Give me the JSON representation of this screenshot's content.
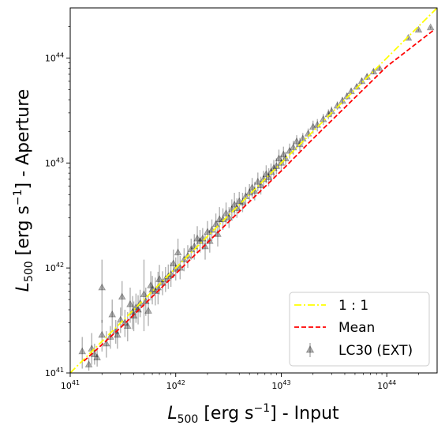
{
  "chart_data": {
    "type": "scatter",
    "x_scale": "log",
    "y_scale": "log",
    "xlim": [
      1e+41,
      3e+44
    ],
    "ylim": [
      1e+41,
      3e+44
    ],
    "x_ticks": [
      {
        "value": 1e+41,
        "base": "10",
        "exp": "41"
      },
      {
        "value": 1e+42,
        "base": "10",
        "exp": "42"
      },
      {
        "value": 1e+43,
        "base": "10",
        "exp": "43"
      },
      {
        "value": 1e+44,
        "base": "10",
        "exp": "44"
      }
    ],
    "y_ticks": [
      {
        "value": 1e+41,
        "base": "10",
        "exp": "41"
      },
      {
        "value": 1e+42,
        "base": "10",
        "exp": "42"
      },
      {
        "value": 1e+43,
        "base": "10",
        "exp": "43"
      },
      {
        "value": 1e+44,
        "base": "10",
        "exp": "44"
      }
    ],
    "xlabel": {
      "symbol": "L",
      "sub": "500",
      "pre": " [erg s",
      "sup": "−1",
      "post": "] - Input"
    },
    "ylabel": {
      "symbol": "L",
      "sub": "500",
      "pre": " [erg s",
      "sup": "−1",
      "post": "] - Aperture"
    },
    "legend_position": "lower-right",
    "series": [
      {
        "name": "1 : 1",
        "kind": "line",
        "style": "dashdot",
        "color": "#ffff00",
        "x": [
          1e+41,
          3e+44
        ],
        "y": [
          1e+41,
          3e+44
        ]
      },
      {
        "name": "Mean",
        "kind": "line",
        "style": "dashed",
        "color": "#ff0000",
        "x": [
          1.35e+41,
          3e+41,
          1e+42,
          3e+42,
          1e+43,
          2e+43,
          5e+43,
          1e+44,
          2.8e+44
        ],
        "y": [
          1.3e+41,
          2.7e+41,
          8.8e+41,
          2.6e+42,
          8.4e+42,
          1.7e+43,
          4.2e+43,
          8.3e+43,
          1.85e+44
        ]
      },
      {
        "name": "LC30 (EXT)",
        "kind": "scatter",
        "marker": "triangle",
        "color": "#000000",
        "alpha": 0.3,
        "x": [
          1.3e+41,
          1.5e+41,
          1.6e+41,
          1.7e+41,
          1.8e+41,
          2e+41,
          2e+41,
          2.2e+41,
          2.4e+41,
          2.5e+41,
          2.7e+41,
          2.8e+41,
          3e+41,
          3.1e+41,
          3.3e+41,
          3.5e+41,
          3.7e+41,
          3.9e+41,
          4e+41,
          4.2e+41,
          4.4e+41,
          4.6e+41,
          5e+41,
          5.2e+41,
          5.5e+41,
          5.8e+41,
          6e+41,
          6.4e+41,
          6.8e+41,
          7e+41,
          7.5e+41,
          8e+41,
          8.5e+41,
          9e+41,
          9.5e+41,
          1e+42,
          1.05e+42,
          1.1e+42,
          1.2e+42,
          1.3e+42,
          1.4e+42,
          1.5e+42,
          1.6e+42,
          1.7e+42,
          1.8e+42,
          1.9e+42,
          2e+42,
          2.1e+42,
          2.2e+42,
          2.4e+42,
          2.5e+42,
          2.6e+42,
          2.8e+42,
          3e+42,
          3.2e+42,
          3.4e+42,
          3.6e+42,
          3.8e+42,
          4e+42,
          4.3e+42,
          4.6e+42,
          5e+42,
          5.3e+42,
          5.6e+42,
          6e+42,
          6.4e+42,
          6.8e+42,
          7.2e+42,
          7.6e+42,
          8e+42,
          8.5e+42,
          9e+42,
          9.5e+42,
          1e+43,
          1.05e+43,
          1.1e+43,
          1.2e+43,
          1.3e+43,
          1.4e+43,
          1.5e+43,
          1.6e+43,
          1.8e+43,
          2e+43,
          2.2e+43,
          2.5e+43,
          2.8e+43,
          3e+43,
          3.4e+43,
          3.8e+43,
          4.2e+43,
          4.6e+43,
          5.2e+43,
          5.8e+43,
          6.5e+43,
          7.5e+43,
          8.5e+43,
          1.6e+44,
          2e+44,
          2.6e+44
        ],
        "y": [
          1.6e+41,
          1.2e+41,
          1.7e+41,
          1.5e+41,
          1.4e+41,
          2.3e+41,
          6.5e+41,
          1.9e+41,
          2.2e+41,
          3.6e+41,
          2.5e+41,
          2.3e+41,
          3.2e+41,
          5.3e+41,
          3e+41,
          2.8e+41,
          4.5e+41,
          3.8e+41,
          3.5e+41,
          4.2e+41,
          4e+41,
          4.6e+41,
          5.6e+41,
          4.8e+41,
          3.9e+41,
          6.8e+41,
          6.2e+41,
          6e+41,
          6.5e+41,
          7.8e+41,
          7.2e+41,
          7.8e+41,
          8.3e+41,
          8.7e+41,
          1.1e+42,
          9.8e+41,
          1.4e+42,
          1e+42,
          1.2e+42,
          1.3e+42,
          1.5e+42,
          1.6e+42,
          1.9e+42,
          1.8e+42,
          1.9e+42,
          1.6e+42,
          2.2e+42,
          1.8e+42,
          2.3e+42,
          2.6e+42,
          2.1e+42,
          2.9e+42,
          2.9e+42,
          3.3e+42,
          3e+42,
          3.6e+42,
          4e+42,
          3.7e+42,
          4.3e+42,
          4.2e+42,
          4.8e+42,
          5.2e+42,
          5.8e+42,
          5.4e+42,
          6.6e+42,
          6.1e+42,
          7e+42,
          7.8e+42,
          7.3e+42,
          8.2e+42,
          8.9e+42,
          9.3e+42,
          1.1e+43,
          1e+43,
          1.2e+43,
          1.1e+43,
          1.3e+43,
          1.4e+43,
          1.6e+43,
          1.5e+43,
          1.7e+43,
          1.9e+43,
          2.2e+43,
          2.3e+43,
          2.6e+43,
          2.9e+43,
          3.1e+43,
          3.5e+43,
          3.9e+43,
          4.3e+43,
          4.8e+43,
          5.3e+43,
          6e+43,
          6.6e+43,
          7.4e+43,
          8e+43,
          1.55e+44,
          1.85e+44,
          1.95e+44
        ],
        "err_lo": [
          1.1e+41,
          1.05e+41,
          1.2e+41,
          1.2e+41,
          1.15e+41,
          1.6e+41,
          3e+41,
          1.4e+41,
          1.7e+41,
          2.5e+41,
          1.9e+41,
          1.7e+41,
          2.4e+41,
          3.5e+41,
          2.2e+41,
          2e+41,
          3e+41,
          2.6e+41,
          2.5e+41,
          3e+41,
          2.9e+41,
          3.4e+41,
          2.5e+41,
          3.5e+41,
          2.8e+41,
          4.9e+41,
          4.5e+41,
          4.4e+41,
          4.5e+41,
          5.6e+41,
          5.5e+41,
          5.9e+41,
          6.3e+41,
          6.6e+41,
          8e+41,
          7.6e+41,
          1e+42,
          7.8e+41,
          9.3e+41,
          1e+42,
          1.2e+42,
          1.2e+42,
          1.4e+42,
          1.4e+42,
          1.5e+42,
          1.2e+42,
          1.7e+42,
          1.4e+42,
          1.8e+42,
          2e+42,
          1.6e+42,
          2.2e+42,
          2.3e+42,
          2.6e+42,
          2.4e+42,
          2.9e+42,
          3.1e+42,
          3e+42,
          3.5e+42,
          3.4e+42,
          3.9e+42,
          4.3e+42,
          4.7e+42,
          4.4e+42,
          5.4e+42,
          5e+42,
          5.8e+42,
          6.4e+42,
          6e+42,
          6.8e+42,
          7.4e+42,
          7.8e+42,
          9e+42,
          8.5e+42,
          1e+43,
          9.5e+42,
          1.1e+43,
          1.2e+43,
          1.4e+43,
          1.3e+43,
          1.5e+43,
          1.7e+43,
          1.9e+43,
          2e+43,
          2.3e+43,
          2.6e+43,
          2.8e+43,
          3.2e+43,
          3.6e+43,
          4e+43,
          4.5e+43,
          5e+43,
          5.6e+43,
          6.2e+43,
          7e+43,
          7.6e+43,
          1.5e+44,
          1.8e+44,
          1.9e+44
        ],
        "err_hi": [
          2.2e+41,
          1.4e+41,
          2.4e+41,
          1.9e+41,
          1.7e+41,
          3.2e+41,
          1.2e+42,
          2.5e+41,
          2.8e+41,
          5e+41,
          3.2e+41,
          3e+41,
          4.2e+41,
          7.5e+41,
          4e+41,
          3.8e+41,
          6.5e+41,
          5.4e+41,
          4.8e+41,
          5.7e+41,
          5.5e+41,
          6.2e+41,
          1.2e+42,
          6.5e+41,
          5.4e+41,
          9.3e+41,
          8.4e+41,
          8.1e+41,
          9.2e+41,
          1.07e+42,
          9.3e+41,
          1.02e+42,
          1.08e+42,
          1.13e+42,
          1.5e+42,
          1.26e+42,
          1.9e+42,
          1.3e+42,
          1.54e+42,
          1.65e+42,
          1.9e+42,
          2.1e+42,
          2.5e+42,
          2.3e+42,
          2.4e+42,
          2.1e+42,
          2.8e+42,
          2.3e+42,
          2.9e+42,
          3.3e+42,
          2.8e+42,
          3.8e+42,
          3.7e+42,
          4.2e+42,
          3.8e+42,
          4.5e+42,
          5.2e+42,
          4.6e+42,
          5.3e+42,
          5.2e+42,
          5.9e+42,
          6.3e+42,
          7.2e+42,
          6.6e+42,
          8.1e+42,
          7.4e+42,
          8.4e+42,
          9.5e+42,
          8.9e+42,
          9.9e+42,
          1.07e+43,
          1.11e+43,
          1.34e+43,
          1.18e+43,
          1.43e+43,
          1.28e+43,
          1.53e+43,
          1.63e+43,
          1.84e+43,
          1.73e+43,
          1.93e+43,
          2.13e+43,
          2.53e+43,
          2.62e+43,
          2.93e+43,
          3.24e+43,
          3.45e+43,
          3.85e+43,
          4.25e+43,
          4.65e+43,
          5.15e+43,
          5.65e+43,
          6.45e+43,
          7.05e+43,
          7.85e+43,
          8.45e+43,
          1.6e+44,
          1.9e+44,
          2e+44
        ]
      }
    ]
  }
}
